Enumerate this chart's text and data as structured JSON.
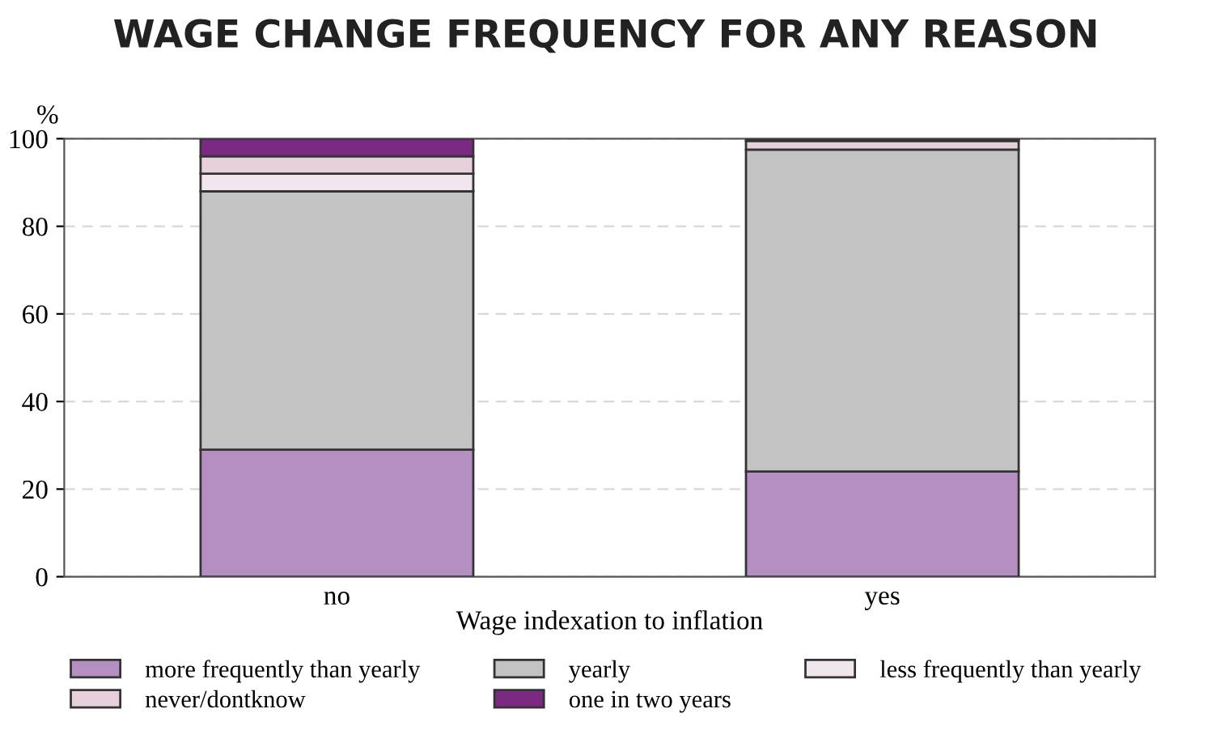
{
  "chart_data": {
    "type": "bar",
    "stacked": true,
    "title": "WAGE CHANGE FREQUENCY FOR ANY REASON",
    "xlabel": "Wage indexation to inflation",
    "ylabel": "%",
    "categories": [
      "no",
      "yes"
    ],
    "series": [
      {
        "name": "more frequently than yearly",
        "color": "#b68fc2",
        "values": [
          29,
          24
        ]
      },
      {
        "name": "yearly",
        "color": "#c3c3c3",
        "values": [
          59,
          73.5
        ]
      },
      {
        "name": "less frequently than yearly",
        "color": "#f2e6ee",
        "values": [
          4,
          null
        ]
      },
      {
        "name": "never/dontknow",
        "color": "#e6d0dc",
        "values": [
          4,
          2
        ]
      },
      {
        "name": "one in two years",
        "color": "#7b2982",
        "values": [
          4,
          0.5
        ]
      }
    ],
    "ylim": [
      0,
      100
    ],
    "yticks": [
      0,
      20,
      40,
      60,
      80,
      100
    ],
    "grid": "y",
    "legend": "bottom"
  }
}
